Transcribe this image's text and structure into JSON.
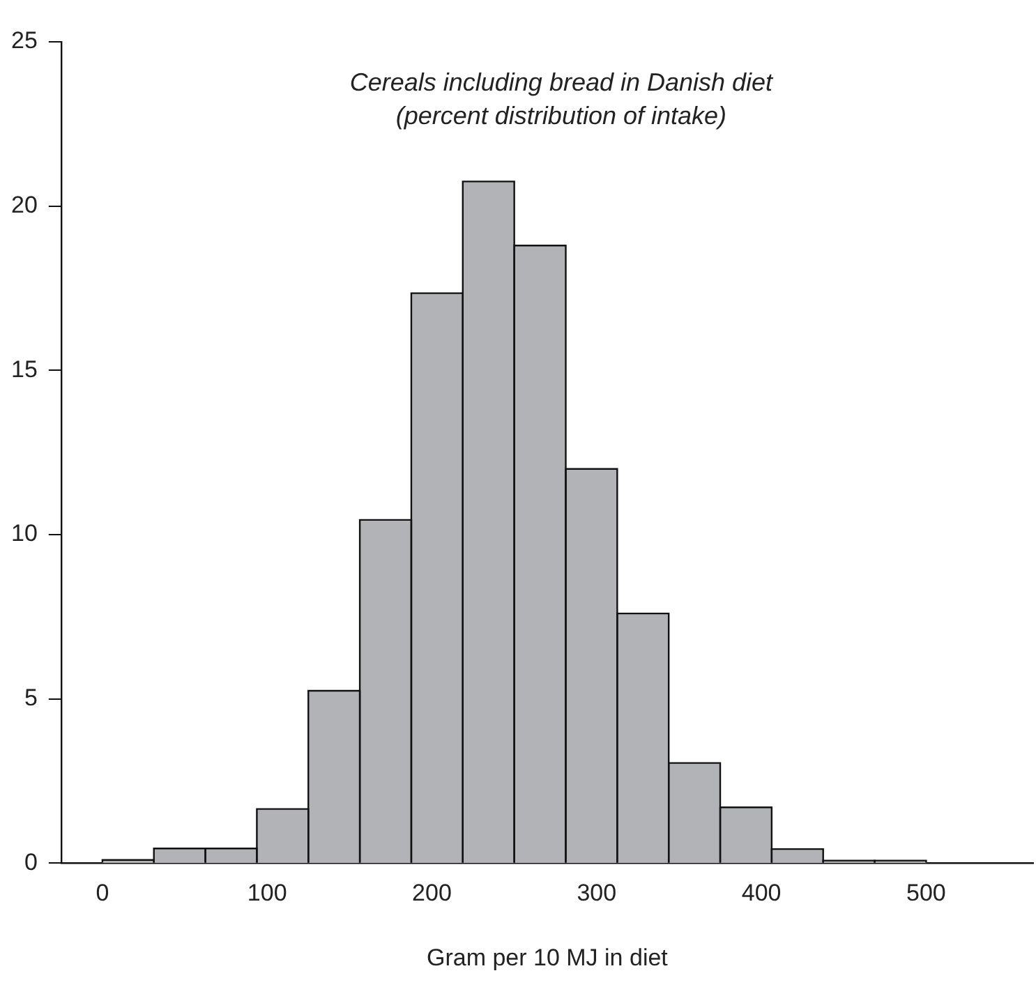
{
  "chart_data": {
    "type": "histogram",
    "title": "Cereals including bread in Danish diet",
    "subtitle": "(percent distribution of intake)",
    "xlabel": "Gram per 10 MJ in diet",
    "bins": [
      0,
      31.25,
      62.5,
      93.75,
      125,
      156.25,
      187.5,
      218.75,
      250,
      281.25,
      312.5,
      343.75,
      375,
      406.25,
      437.5,
      468.75,
      500
    ],
    "values": [
      0.1,
      0.45,
      0.45,
      1.65,
      5.25,
      10.45,
      17.35,
      20.75,
      18.8,
      12.0,
      7.6,
      3.05,
      1.7,
      0.43,
      0.08,
      0.08
    ],
    "color": "#b2b3b7",
    "xlim": [
      -25,
      565
    ],
    "xticks": [
      0,
      100,
      200,
      300,
      400,
      500
    ],
    "ylim": [
      0,
      25
    ],
    "yticks": [
      0,
      5,
      10,
      15,
      20,
      25
    ],
    "grid": false,
    "legend": false
  }
}
